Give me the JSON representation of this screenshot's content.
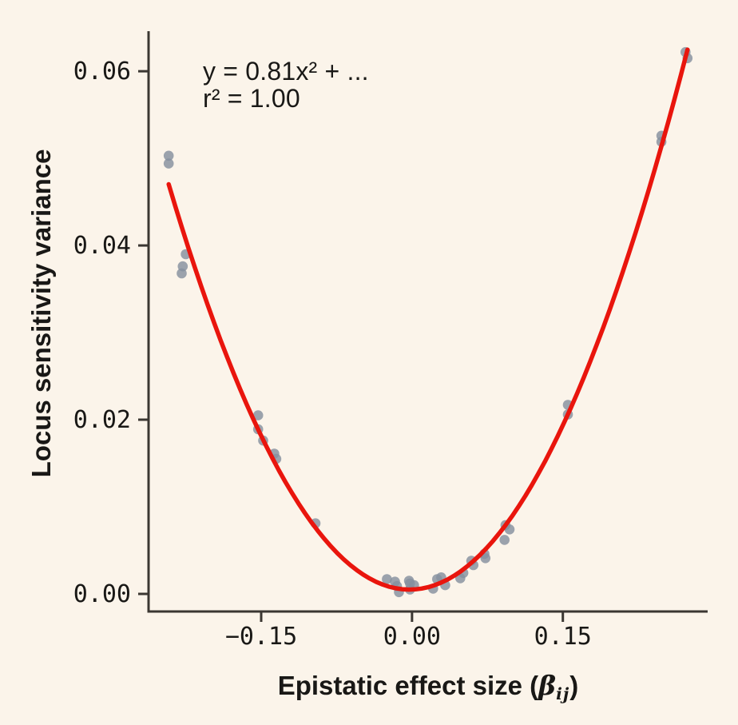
{
  "figure": {
    "annotation": {
      "line1": "y = 0.81x² + ...",
      "line2": "r² = 1.00"
    },
    "xlabel": {
      "text": "Epistatic effect size (",
      "symbol": "β",
      "subscript": "ij",
      "close": ")"
    },
    "ylabel": "Locus sensitivity variance"
  },
  "chart_data": {
    "type": "scatter",
    "title": "",
    "xlabel": "Epistatic effect size (β_ij)",
    "ylabel": "Locus sensitivity variance",
    "annotation_lines": [
      "y = 0.81x² + ...",
      "r² = 1.00"
    ],
    "grid": false,
    "legend": false,
    "xlim": [
      -0.262,
      0.294
    ],
    "ylim": [
      -0.00202,
      0.0646
    ],
    "x_ticks": {
      "values": [
        -0.15,
        0.0,
        0.15
      ],
      "labels": [
        "−0.15",
        "0.00",
        "0.15"
      ]
    },
    "y_ticks": {
      "values": [
        0.0,
        0.02,
        0.04,
        0.06
      ],
      "labels": [
        "0.00",
        "0.02",
        "0.04",
        "0.06"
      ]
    },
    "points": [
      [
        -0.242,
        0.0503
      ],
      [
        -0.242,
        0.0494
      ],
      [
        -0.225,
        0.039
      ],
      [
        -0.228,
        0.0376
      ],
      [
        -0.229,
        0.0368
      ],
      [
        -0.153,
        0.0205
      ],
      [
        -0.153,
        0.0189
      ],
      [
        -0.148,
        0.0176
      ],
      [
        -0.137,
        0.0161
      ],
      [
        -0.135,
        0.0155
      ],
      [
        -0.096,
        0.0081
      ],
      [
        -0.025,
        0.0017
      ],
      [
        -0.017,
        0.0014
      ],
      [
        -0.015,
        0.0009
      ],
      [
        -0.013,
        0.0002
      ],
      [
        -0.003,
        0.0015
      ],
      [
        -0.002,
        0.0012
      ],
      [
        0.002,
        0.001
      ],
      [
        -0.002,
        0.0005
      ],
      [
        0.021,
        0.0006
      ],
      [
        0.025,
        0.0017
      ],
      [
        0.029,
        0.0019
      ],
      [
        0.033,
        0.001
      ],
      [
        0.048,
        0.0018
      ],
      [
        0.051,
        0.0024
      ],
      [
        0.059,
        0.0038
      ],
      [
        0.061,
        0.0033
      ],
      [
        0.072,
        0.0046
      ],
      [
        0.073,
        0.0041
      ],
      [
        0.092,
        0.0062
      ],
      [
        0.093,
        0.0079
      ],
      [
        0.097,
        0.0074
      ],
      [
        0.155,
        0.0217
      ],
      [
        0.155,
        0.0206
      ],
      [
        0.248,
        0.0526
      ],
      [
        0.248,
        0.0519
      ],
      [
        0.272,
        0.0622
      ],
      [
        0.274,
        0.0615
      ]
    ],
    "fit_curve": {
      "equation_displayed": "y = 0.81x² + ...",
      "r_squared_displayed": 1.0,
      "a": 0.811,
      "b": 0.004,
      "c": 0.0005,
      "x_range": [
        -0.242,
        0.274
      ]
    },
    "colors": {
      "background": "#FBF4EA",
      "point": "#85909F",
      "curve": "#E9150D",
      "axis": "#3B3732",
      "text": "#191816"
    }
  }
}
